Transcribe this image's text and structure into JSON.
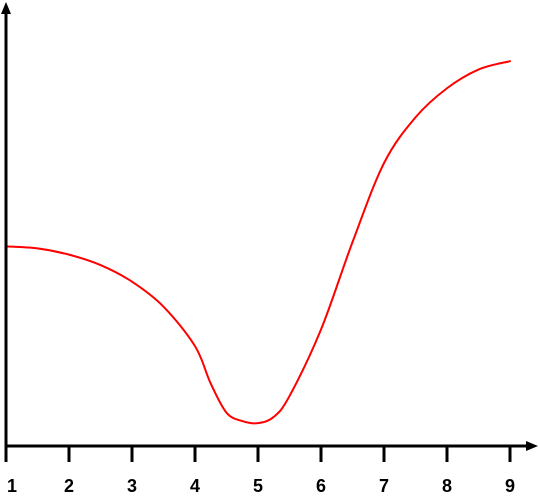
{
  "chart_data": {
    "type": "line",
    "title": "",
    "xlabel": "",
    "ylabel": "",
    "x_ticks": [
      "1",
      "2",
      "3",
      "4",
      "5",
      "6",
      "7",
      "8",
      "9"
    ],
    "xlim": [
      1,
      9.5
    ],
    "ylim": [
      0,
      10
    ],
    "grid": false,
    "legend": "none",
    "series": [
      {
        "color": "#ff0000",
        "points": [
          [
            1.0,
            4.8
          ],
          [
            1.5,
            4.75
          ],
          [
            2.0,
            4.6
          ],
          [
            2.5,
            4.35
          ],
          [
            3.0,
            3.95
          ],
          [
            3.5,
            3.35
          ],
          [
            4.0,
            2.4
          ],
          [
            4.25,
            1.5
          ],
          [
            4.5,
            0.8
          ],
          [
            4.75,
            0.6
          ],
          [
            5.0,
            0.55
          ],
          [
            5.25,
            0.7
          ],
          [
            5.5,
            1.2
          ],
          [
            6.0,
            2.8
          ],
          [
            6.5,
            4.9
          ],
          [
            7.0,
            6.8
          ],
          [
            7.5,
            7.9
          ],
          [
            8.0,
            8.6
          ],
          [
            8.5,
            9.05
          ],
          [
            9.0,
            9.25
          ]
        ]
      }
    ]
  }
}
